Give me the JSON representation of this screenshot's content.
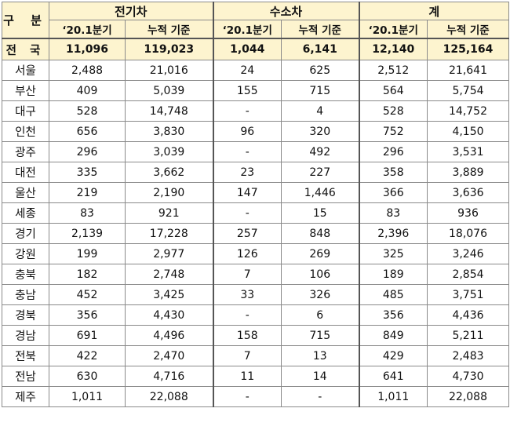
{
  "table": {
    "header": {
      "corner": "구 분",
      "groups": [
        "전기차",
        "수소차",
        "계"
      ],
      "sub": [
        "‘20.1분기",
        "누적 기준"
      ]
    },
    "total": {
      "region": "전 국",
      "values": [
        "11,096",
        "119,023",
        "1,044",
        "6,141",
        "12,140",
        "125,164"
      ]
    },
    "rows": [
      {
        "region": "서울",
        "values": [
          "2,488",
          "21,016",
          "24",
          "625",
          "2,512",
          "21,641"
        ]
      },
      {
        "region": "부산",
        "values": [
          "409",
          "5,039",
          "155",
          "715",
          "564",
          "5,754"
        ]
      },
      {
        "region": "대구",
        "values": [
          "528",
          "14,748",
          "-",
          "4",
          "528",
          "14,752"
        ]
      },
      {
        "region": "인천",
        "values": [
          "656",
          "3,830",
          "96",
          "320",
          "752",
          "4,150"
        ]
      },
      {
        "region": "광주",
        "values": [
          "296",
          "3,039",
          "-",
          "492",
          "296",
          "3,531"
        ]
      },
      {
        "region": "대전",
        "values": [
          "335",
          "3,662",
          "23",
          "227",
          "358",
          "3,889"
        ]
      },
      {
        "region": "울산",
        "values": [
          "219",
          "2,190",
          "147",
          "1,446",
          "366",
          "3,636"
        ]
      },
      {
        "region": "세종",
        "values": [
          "83",
          "921",
          "-",
          "15",
          "83",
          "936"
        ]
      },
      {
        "region": "경기",
        "values": [
          "2,139",
          "17,228",
          "257",
          "848",
          "2,396",
          "18,076"
        ]
      },
      {
        "region": "강원",
        "values": [
          "199",
          "2,977",
          "126",
          "269",
          "325",
          "3,246"
        ]
      },
      {
        "region": "충북",
        "values": [
          "182",
          "2,748",
          "7",
          "106",
          "189",
          "2,854"
        ]
      },
      {
        "region": "충남",
        "values": [
          "452",
          "3,425",
          "33",
          "326",
          "485",
          "3,751"
        ]
      },
      {
        "region": "경북",
        "values": [
          "356",
          "4,430",
          "-",
          "6",
          "356",
          "4,436"
        ]
      },
      {
        "region": "경남",
        "values": [
          "691",
          "4,496",
          "158",
          "715",
          "849",
          "5,211"
        ]
      },
      {
        "region": "전북",
        "values": [
          "422",
          "2,470",
          "7",
          "13",
          "429",
          "2,483"
        ]
      },
      {
        "region": "전남",
        "values": [
          "630",
          "4,716",
          "11",
          "14",
          "641",
          "4,730"
        ]
      },
      {
        "region": "제주",
        "values": [
          "1,011",
          "22,088",
          "-",
          "-",
          "1,011",
          "22,088"
        ]
      }
    ]
  }
}
